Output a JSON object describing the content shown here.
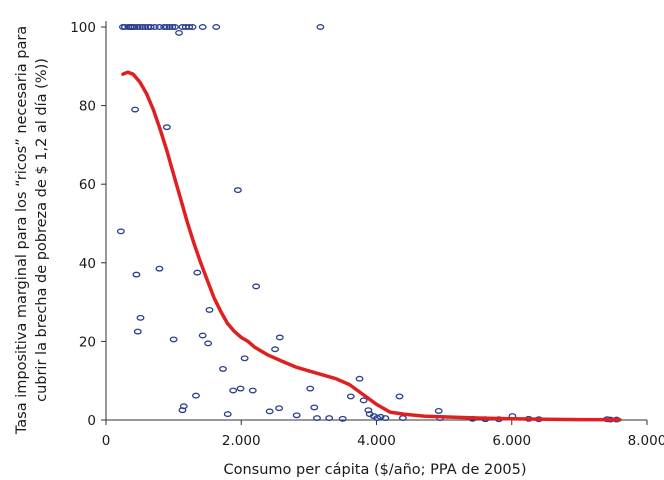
{
  "chart_data": {
    "type": "scatter",
    "title": "",
    "xlabel": "Consumo per cápita ($/año; PPA de 2005)",
    "ylabel_lines": [
      "Tasa impositiva marginal para los “ricos” necesaria para",
      "cubrir la brecha de pobreza de $ 1,2 al día (%))"
    ],
    "xlim": [
      0,
      8000
    ],
    "ylim": [
      0,
      100
    ],
    "x_ticks": [
      0,
      2000,
      4000,
      6000,
      8000
    ],
    "x_tick_labels": [
      "0",
      "2.000",
      "4.000",
      "6.000",
      "8.000"
    ],
    "y_ticks": [
      0,
      20,
      40,
      60,
      80,
      100
    ],
    "y_tick_labels": [
      "0",
      "20",
      "40",
      "60",
      "80",
      "100"
    ],
    "grid": false,
    "colors": {
      "points": "#2b3f8c",
      "trend": "#e02020",
      "axis": "#333333"
    },
    "series": [
      {
        "kind": "points",
        "x": [
          250,
          280,
          330,
          360,
          390,
          420,
          460,
          500,
          540,
          580,
          620,
          660,
          720,
          790,
          860,
          900,
          940,
          980,
          1020,
          1080,
          1130,
          1180,
          1230,
          1280,
          1430,
          1630,
          3170,
          220,
          430,
          900,
          1950,
          450,
          790,
          1350,
          510,
          1530,
          470,
          2220,
          1000,
          1430,
          1510,
          1730,
          2050,
          2500,
          2570,
          2170,
          1880,
          1990,
          1330,
          1800,
          1150,
          1130,
          2420,
          2560,
          2820,
          3020,
          3120,
          3620,
          3750,
          3810,
          3880,
          3900,
          3960,
          4010,
          4060,
          4130,
          4340,
          4390,
          4920,
          4940,
          5420,
          5610,
          5810,
          6010,
          6250,
          6400,
          7410,
          7460,
          7550,
          3080,
          3300,
          3500
        ],
        "y": [
          100,
          100,
          100,
          100,
          100,
          100,
          100,
          100,
          100,
          100,
          100,
          100,
          100,
          100,
          100,
          100,
          100,
          100,
          100,
          98.5,
          100,
          100,
          100,
          100,
          100,
          100,
          100,
          48,
          79,
          74.5,
          58.5,
          37,
          38.5,
          37.5,
          26,
          28,
          22.5,
          34,
          20.5,
          21.5,
          19.5,
          13,
          15.7,
          18,
          21,
          7.5,
          7.5,
          8,
          6.2,
          1.5,
          3.5,
          2.5,
          2.2,
          3,
          1.2,
          8,
          0.5,
          6,
          10.5,
          5,
          2.5,
          1.5,
          1,
          0.5,
          0.8,
          0.5,
          6,
          0.5,
          2.3,
          0.5,
          0.3,
          0.2,
          0.2,
          1,
          0.3,
          0.2,
          0.2,
          0.1,
          0.1,
          3.2,
          0.5,
          0.3
        ]
      },
      {
        "kind": "trend",
        "x": [
          250,
          320,
          400,
          500,
          600,
          700,
          800,
          900,
          1000,
          1100,
          1200,
          1300,
          1400,
          1500,
          1600,
          1700,
          1800,
          1900,
          2000,
          2100,
          2200,
          2400,
          2600,
          2800,
          3000,
          3200,
          3400,
          3600,
          3800,
          4000,
          4200,
          4400,
          4700,
          5000,
          5500,
          6000,
          6500,
          7000,
          7500,
          7600
        ],
        "y": [
          88,
          88.5,
          88,
          86,
          83,
          79,
          74,
          68.5,
          62.5,
          56.5,
          50.5,
          45,
          40,
          35.5,
          31,
          27.5,
          24.5,
          22.5,
          21,
          20,
          18.5,
          16.5,
          15,
          13.5,
          12.5,
          11.5,
          10.5,
          9,
          6.5,
          4,
          2,
          1.5,
          1,
          0.8,
          0.5,
          0.3,
          0.2,
          0.1,
          0.1,
          0.05
        ]
      }
    ]
  }
}
